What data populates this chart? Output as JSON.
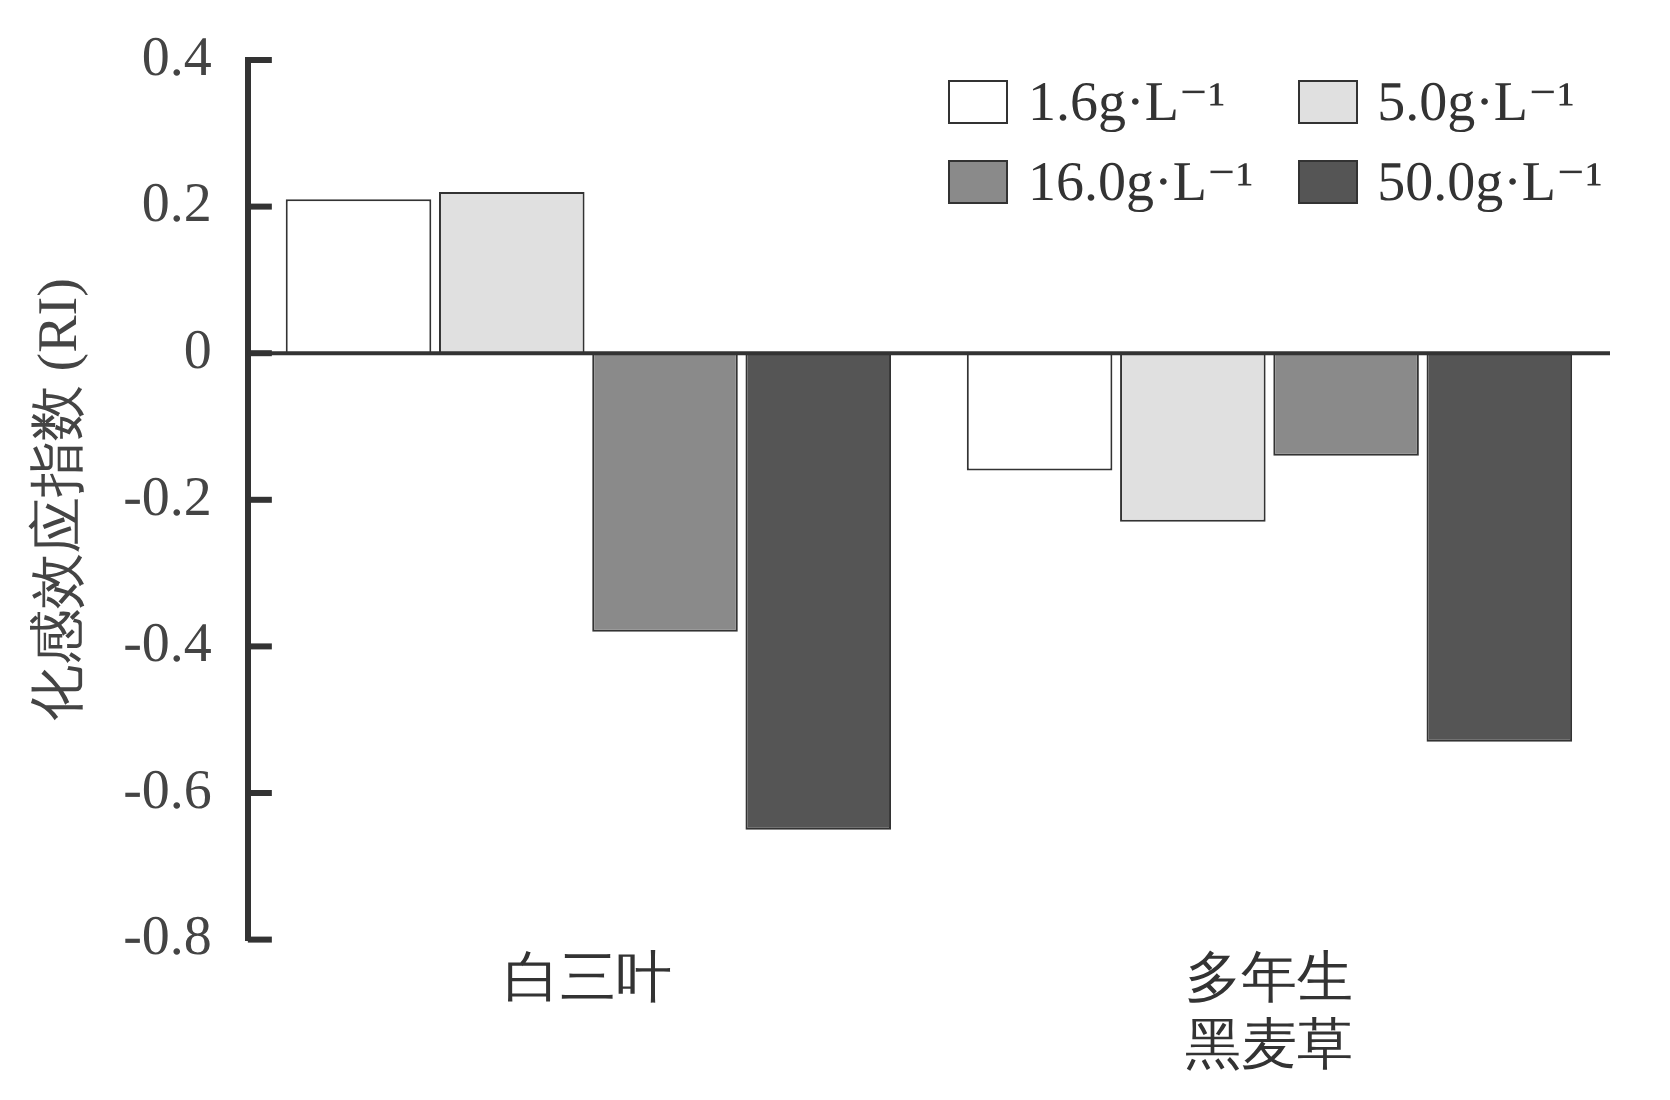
{
  "chart_data": {
    "type": "bar",
    "ylabel": "化感效应指数 (RI)",
    "categories": [
      "白三叶",
      "多年生黑麦草"
    ],
    "series": [
      {
        "name": "1.6g·L⁻¹",
        "color": "#ffffff",
        "values": [
          0.21,
          -0.16
        ]
      },
      {
        "name": "5.0g·L⁻¹",
        "color": "#e0e0e0",
        "values": [
          0.22,
          -0.23
        ]
      },
      {
        "name": "16.0g·L⁻¹",
        "color": "#8a8a8a",
        "values": [
          -0.38,
          -0.14
        ]
      },
      {
        "name": "50.0g·L⁻¹",
        "color": "#555555",
        "values": [
          -0.65,
          -0.53
        ]
      }
    ],
    "ylim": [
      -0.8,
      0.4
    ],
    "yticks": [
      -0.8,
      -0.6,
      -0.4,
      -0.2,
      0,
      0.2,
      0.4
    ],
    "legend": "top right"
  }
}
